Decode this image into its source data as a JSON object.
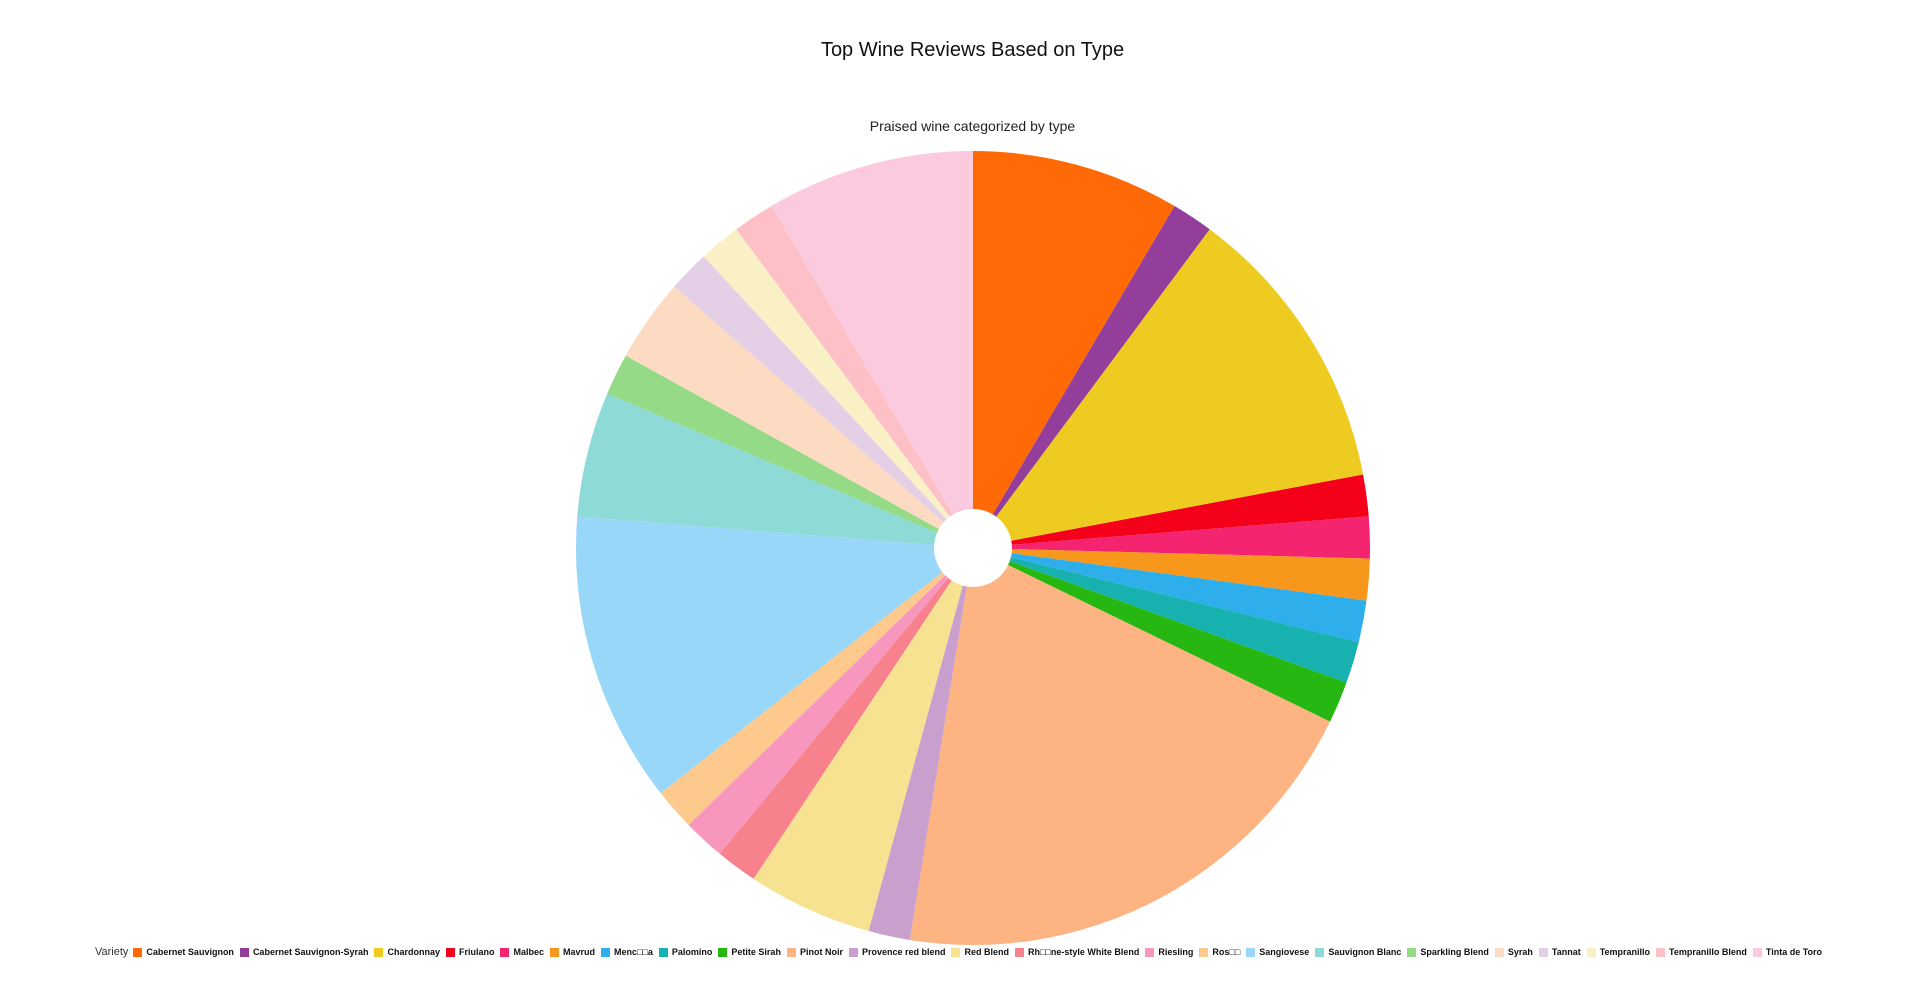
{
  "chart_data": {
    "type": "pie",
    "title": "Top Wine Reviews Based on Type",
    "subtitle": "Praised wine categorized by type",
    "legend_title": "Variety",
    "legend_position": "bottom",
    "donut_hole": true,
    "slices": [
      {
        "label": "Cabernet Sauvignon",
        "value": 5,
        "color": "#FF6A06"
      },
      {
        "label": "Cabernet Sauvignon-Syrah",
        "value": 1,
        "color": "#943E9B"
      },
      {
        "label": "Chardonnay",
        "value": 7,
        "color": "#EECB21"
      },
      {
        "label": "Friulano",
        "value": 1,
        "color": "#F5001A"
      },
      {
        "label": "Malbec",
        "value": 1,
        "color": "#F52471"
      },
      {
        "label": "Mavrud",
        "value": 1,
        "color": "#F7981C"
      },
      {
        "label": "Menc□□a",
        "value": 1,
        "color": "#2FAEEC"
      },
      {
        "label": "Palomino",
        "value": 1,
        "color": "#17B2AF"
      },
      {
        "label": "Petite Sirah",
        "value": 1,
        "color": "#27B713"
      },
      {
        "label": "Pinot Noir",
        "value": 12,
        "color": "#FDB482"
      },
      {
        "label": "Provence red blend",
        "value": 1,
        "color": "#C99FCD"
      },
      {
        "label": "Red Blend",
        "value": 3,
        "color": "#F6E291"
      },
      {
        "label": "Rh□□ne-style White Blend",
        "value": 1,
        "color": "#F7818D"
      },
      {
        "label": "Riesling",
        "value": 1,
        "color": "#F797BE"
      },
      {
        "label": "Ros□□",
        "value": 1,
        "color": "#FDC98D"
      },
      {
        "label": "Sangiovese",
        "value": 7,
        "color": "#98D7F7"
      },
      {
        "label": "Sauvignon Blanc",
        "value": 3,
        "color": "#8DDAD6"
      },
      {
        "label": "Sparkling Blend",
        "value": 1,
        "color": "#95DA86"
      },
      {
        "label": "Syrah",
        "value": 2,
        "color": "#FDDAC2"
      },
      {
        "label": "Tannat",
        "value": 1,
        "color": "#E3D0E6"
      },
      {
        "label": "Tempranillo",
        "value": 1,
        "color": "#FAF0C6"
      },
      {
        "label": "Tempranillo Blend",
        "value": 1,
        "color": "#FCC0C6"
      },
      {
        "label": "Tinta de Toro",
        "value": 5,
        "color": "#FCCADF"
      }
    ]
  }
}
